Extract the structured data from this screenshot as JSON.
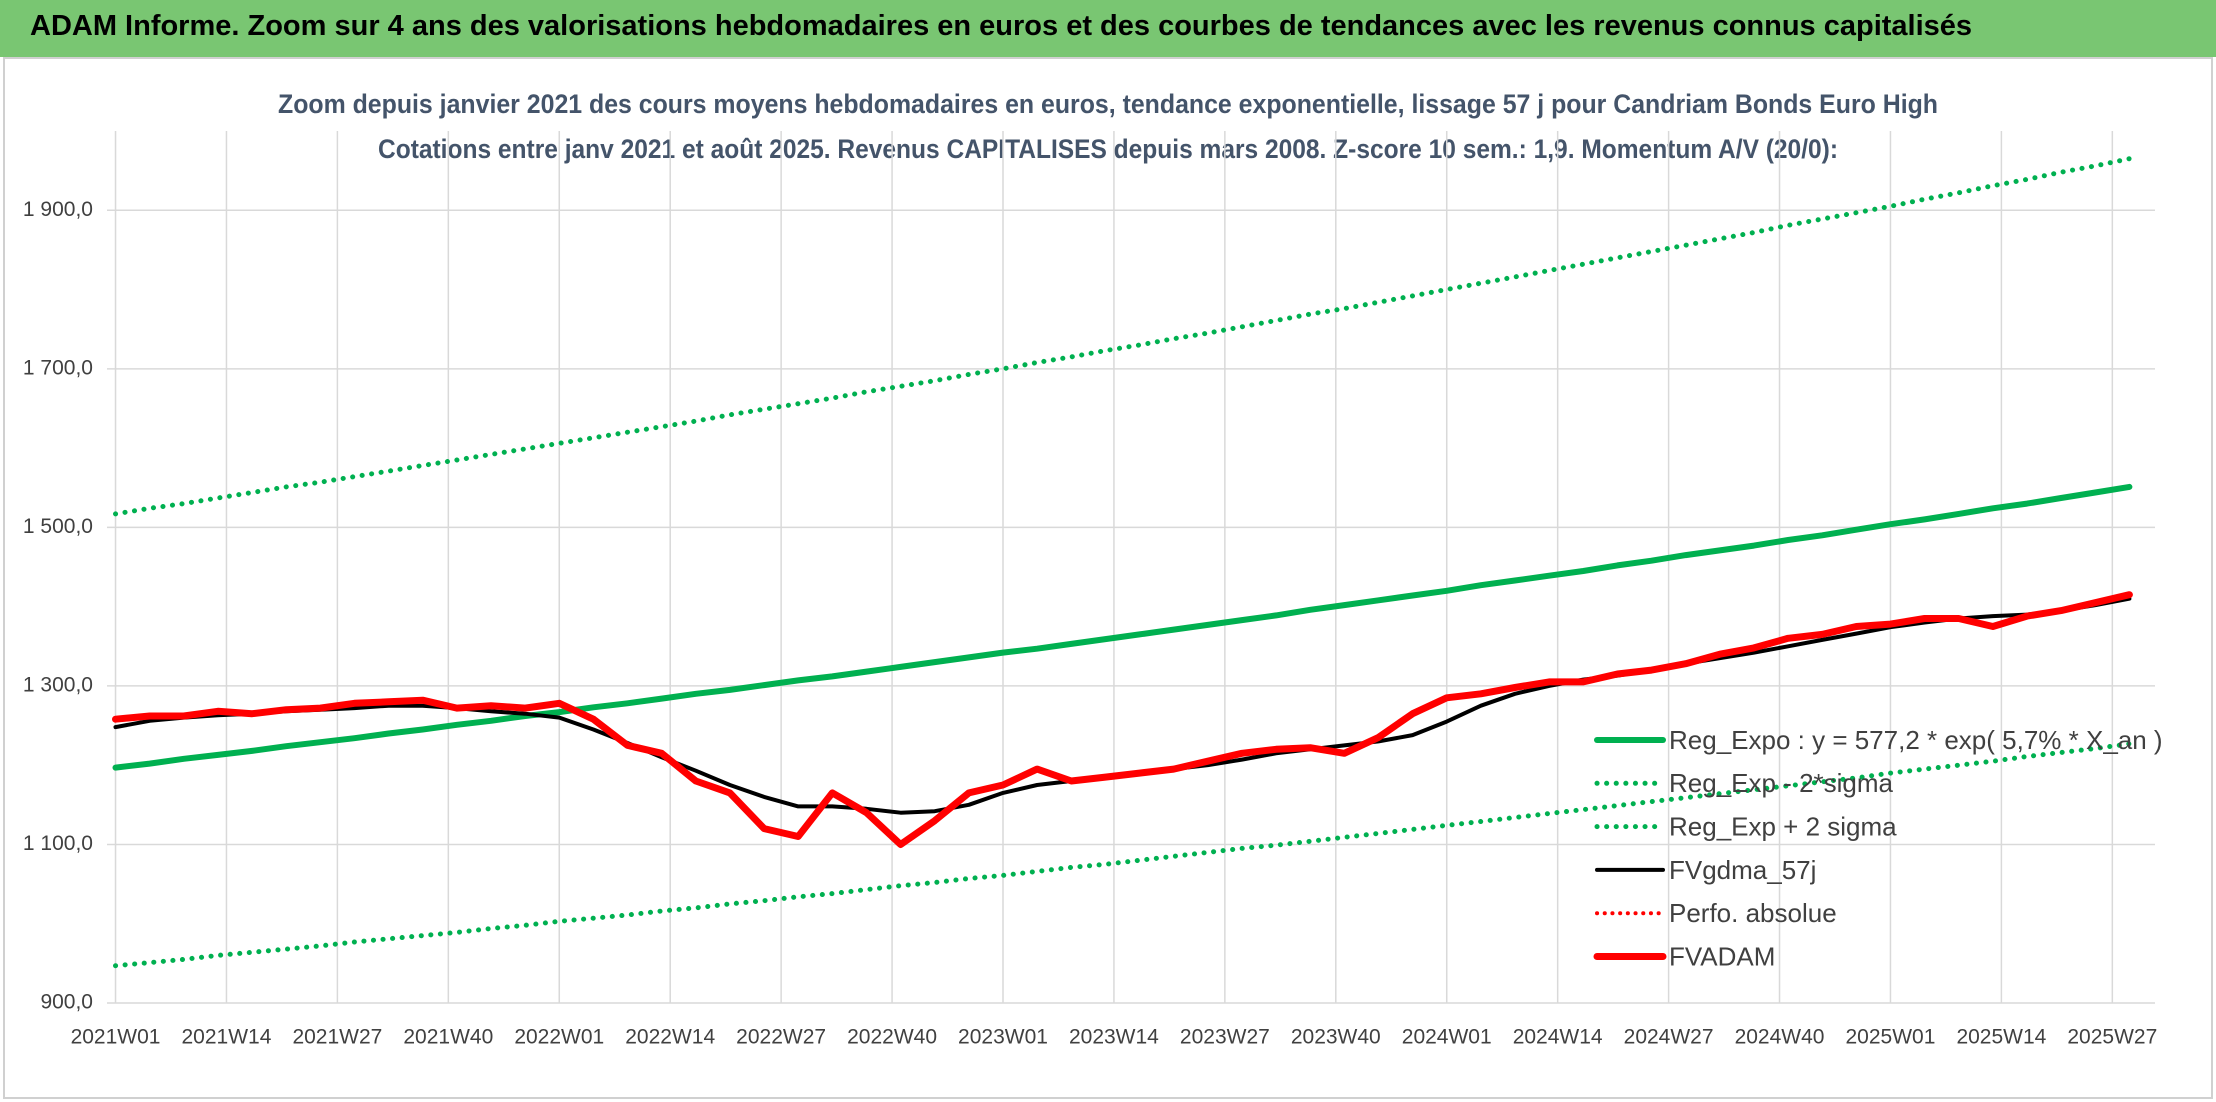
{
  "header": {
    "title": "ADAM Informe. Zoom sur 4 ans des valorisations hebdomadaires en euros et des courbes de tendances avec les revenus connus capitalisés"
  },
  "chart_data": {
    "type": "line",
    "title": "Zoom depuis janvier 2021 des cours moyens hebdomadaires en euros, tendance exponentielle, lissage 57 j pour Candriam Bonds Euro High",
    "subtitle": "Cotations entre janv 2021 et août 2025. Revenus CAPITALISES depuis mars 2008. Z-score 10 sem.: 1,9. Momentum A/V (20/0):",
    "x": [
      0,
      4,
      8,
      12,
      16,
      20,
      24,
      28,
      32,
      36,
      40,
      44,
      48,
      52,
      56,
      60,
      64,
      68,
      72,
      76,
      80,
      84,
      88,
      92,
      96,
      100,
      104,
      108,
      112,
      116,
      120,
      124,
      128,
      132,
      136,
      140,
      144,
      148,
      152,
      156,
      160,
      164,
      168,
      172,
      176,
      180,
      184,
      188,
      192,
      196,
      200,
      204,
      208,
      212,
      216,
      220,
      224,
      228,
      232,
      236
    ],
    "xlim": [
      -1,
      239
    ],
    "xticks": [
      {
        "value": 0,
        "label": "2021W01"
      },
      {
        "value": 13,
        "label": "2021W14"
      },
      {
        "value": 26,
        "label": "2021W27"
      },
      {
        "value": 39,
        "label": "2021W40"
      },
      {
        "value": 52,
        "label": "2022W01"
      },
      {
        "value": 65,
        "label": "2022W14"
      },
      {
        "value": 78,
        "label": "2022W27"
      },
      {
        "value": 91,
        "label": "2022W40"
      },
      {
        "value": 104,
        "label": "2023W01"
      },
      {
        "value": 117,
        "label": "2023W14"
      },
      {
        "value": 130,
        "label": "2023W27"
      },
      {
        "value": 143,
        "label": "2023W40"
      },
      {
        "value": 156,
        "label": "2024W01"
      },
      {
        "value": 169,
        "label": "2024W14"
      },
      {
        "value": 182,
        "label": "2024W27"
      },
      {
        "value": 195,
        "label": "2024W40"
      },
      {
        "value": 208,
        "label": "2025W01"
      },
      {
        "value": 221,
        "label": "2025W14"
      },
      {
        "value": 234,
        "label": "2025W27"
      }
    ],
    "ylim": [
      900,
      2000
    ],
    "yticks": [
      {
        "value": 900,
        "label": "900,0"
      },
      {
        "value": 1100,
        "label": "1 100,0"
      },
      {
        "value": 1300,
        "label": "1 300,0"
      },
      {
        "value": 1500,
        "label": "1 500,0"
      },
      {
        "value": 1700,
        "label": "1 700,0"
      },
      {
        "value": 1900,
        "label": "1 900,0"
      }
    ],
    "grid": true,
    "legend": "right",
    "series": [
      {
        "name": "Reg_Expo : y = 577,2 * exp( 5,7% *  X_an )",
        "color": "#00b050",
        "style": "solid",
        "width": 6,
        "values": [
          1197,
          1202,
          1208,
          1213,
          1218,
          1224,
          1229,
          1234,
          1240,
          1245,
          1251,
          1256,
          1262,
          1267,
          1273,
          1278,
          1284,
          1290,
          1295,
          1301,
          1307,
          1312,
          1318,
          1324,
          1330,
          1336,
          1342,
          1347,
          1353,
          1359,
          1365,
          1371,
          1377,
          1383,
          1389,
          1396,
          1402,
          1408,
          1414,
          1420,
          1427,
          1433,
          1439,
          1445,
          1452,
          1458,
          1465,
          1471,
          1477,
          1484,
          1490,
          1497,
          1504,
          1510,
          1517,
          1524,
          1530,
          1537,
          1544,
          1551
        ]
      },
      {
        "name": "Reg_Exp - 2*sigma",
        "color": "#00b050",
        "style": "dotted",
        "width": 5,
        "values": [
          947,
          951,
          955,
          960,
          964,
          968,
          972,
          977,
          981,
          985,
          989,
          994,
          998,
          1003,
          1007,
          1011,
          1016,
          1020,
          1025,
          1029,
          1034,
          1038,
          1043,
          1048,
          1052,
          1057,
          1061,
          1066,
          1071,
          1075,
          1080,
          1085,
          1090,
          1095,
          1099,
          1104,
          1109,
          1114,
          1119,
          1124,
          1129,
          1134,
          1139,
          1144,
          1149,
          1154,
          1159,
          1164,
          1169,
          1174,
          1179,
          1184,
          1190,
          1195,
          1200,
          1205,
          1211,
          1216,
          1221,
          1227
        ]
      },
      {
        "name": "Reg_Exp + 2 sigma",
        "color": "#00b050",
        "style": "dotted",
        "width": 5,
        "values": [
          1517,
          1524,
          1530,
          1537,
          1544,
          1551,
          1557,
          1564,
          1571,
          1578,
          1585,
          1592,
          1599,
          1606,
          1613,
          1620,
          1627,
          1634,
          1642,
          1649,
          1656,
          1663,
          1671,
          1678,
          1685,
          1693,
          1700,
          1708,
          1715,
          1723,
          1730,
          1738,
          1745,
          1753,
          1761,
          1769,
          1776,
          1784,
          1792,
          1800,
          1808,
          1816,
          1824,
          1832,
          1840,
          1848,
          1856,
          1864,
          1872,
          1881,
          1889,
          1897,
          1905,
          1914,
          1922,
          1931,
          1939,
          1948,
          1956,
          1965
        ]
      },
      {
        "name": "FVgdma_57j",
        "color": "#000000",
        "style": "solid",
        "width": 4,
        "values": [
          1248,
          1256,
          1260,
          1263,
          1265,
          1268,
          1270,
          1272,
          1275,
          1275,
          1272,
          1268,
          1265,
          1260,
          1245,
          1228,
          1210,
          1193,
          1175,
          1160,
          1148,
          1148,
          1145,
          1140,
          1142,
          1150,
          1165,
          1175,
          1180,
          1185,
          1190,
          1195,
          1200,
          1207,
          1215,
          1220,
          1225,
          1230,
          1238,
          1255,
          1275,
          1290,
          1300,
          1308,
          1313,
          1320,
          1328,
          1335,
          1342,
          1350,
          1358,
          1366,
          1374,
          1380,
          1385,
          1388,
          1390,
          1395,
          1402,
          1410
        ]
      },
      {
        "name": "Perfo. absolue",
        "color": "#ff0000",
        "style": "dotted",
        "width": 4,
        "values": [
          null,
          null,
          null,
          null,
          null,
          null,
          null,
          null,
          null,
          null,
          null,
          null,
          null,
          null,
          null,
          null,
          null,
          null,
          null,
          null,
          null,
          null,
          null,
          null,
          null,
          null,
          null,
          null,
          null,
          null,
          null,
          null,
          null,
          null,
          null,
          null,
          null,
          null,
          null,
          null,
          null,
          null,
          null,
          null,
          null,
          null,
          null,
          null,
          null,
          null,
          null,
          null,
          null,
          null,
          null,
          null,
          null,
          null,
          null,
          null
        ]
      },
      {
        "name": "FVADAM",
        "color": "#ff0000",
        "style": "solid",
        "width": 7,
        "values": [
          1258,
          1262,
          1262,
          1268,
          1265,
          1270,
          1272,
          1278,
          1280,
          1282,
          1272,
          1275,
          1272,
          1278,
          1258,
          1225,
          1215,
          1180,
          1165,
          1120,
          1110,
          1165,
          1140,
          1100,
          1130,
          1165,
          1175,
          1195,
          1180,
          1185,
          1190,
          1195,
          1205,
          1215,
          1220,
          1222,
          1215,
          1235,
          1265,
          1285,
          1290,
          1298,
          1305,
          1305,
          1315,
          1320,
          1328,
          1340,
          1348,
          1360,
          1365,
          1375,
          1378,
          1385,
          1385,
          1375,
          1388,
          1395,
          1405,
          1415
        ]
      }
    ]
  }
}
